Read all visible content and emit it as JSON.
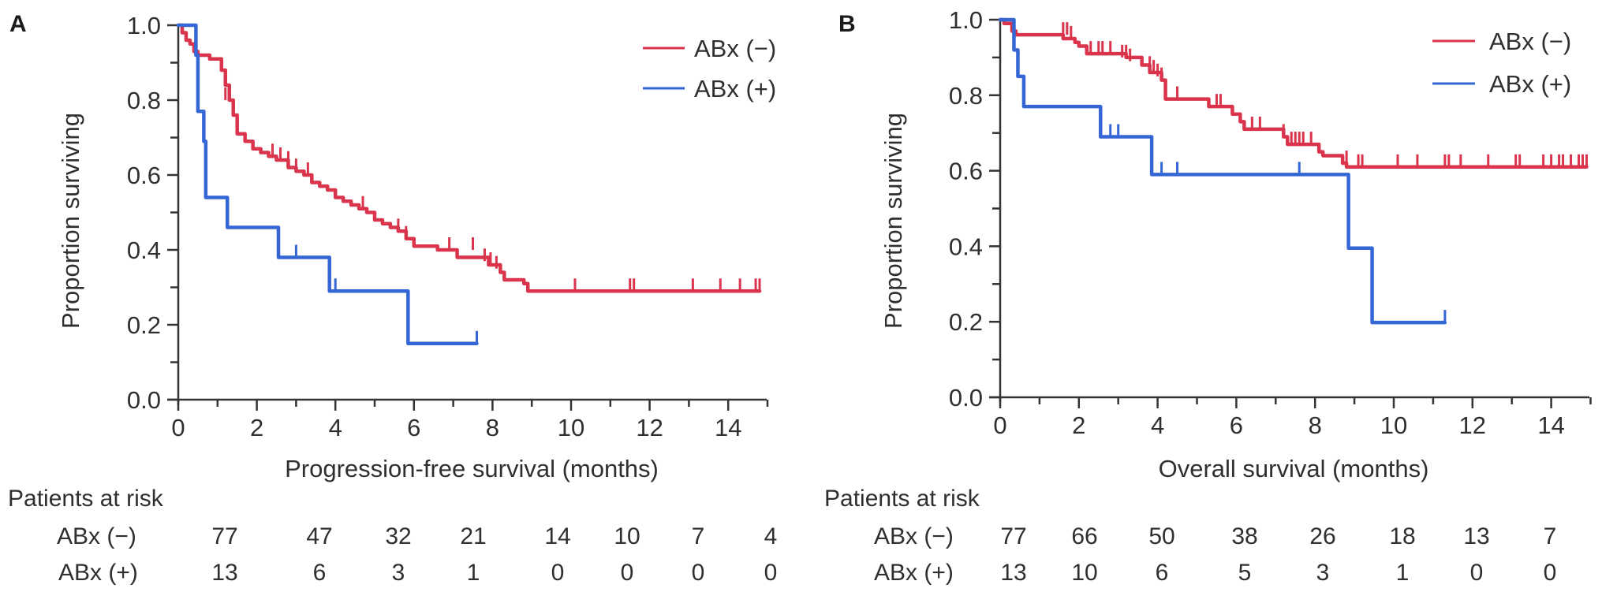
{
  "colors": {
    "abx_neg": "#d9344b",
    "abx_pos": "#3566d6",
    "axis": "#333333"
  },
  "chart_data": [
    {
      "panel": "A",
      "type": "line",
      "subtype": "kaplan-meier step",
      "title": "",
      "xlabel": "Progression-free survival (months)",
      "ylabel": "Proportion surviving",
      "xlim": [
        0,
        15
      ],
      "ylim": [
        0,
        1.0
      ],
      "xticks": [
        "0",
        "2",
        "4",
        "6",
        "8",
        "10",
        "12",
        "14"
      ],
      "xtick_values": [
        0,
        2,
        4,
        6,
        8,
        10,
        12,
        14
      ],
      "yticks": [
        "0.0",
        "0.2",
        "0.4",
        "0.6",
        "0.8",
        "1.0"
      ],
      "ytick_values": [
        0,
        0.2,
        0.4,
        0.6,
        0.8,
        1.0
      ],
      "grid": false,
      "legend_position": "top-right",
      "series": [
        {
          "name": "ABx (−)",
          "color_key": "abx_neg",
          "steps": [
            [
              0,
              1.0
            ],
            [
              0.1,
              0.98
            ],
            [
              0.2,
              0.96
            ],
            [
              0.3,
              0.95
            ],
            [
              0.4,
              0.93
            ],
            [
              0.5,
              0.92
            ],
            [
              0.7,
              0.92
            ],
            [
              0.8,
              0.91
            ],
            [
              1.0,
              0.91
            ],
            [
              1.1,
              0.88
            ],
            [
              1.2,
              0.84
            ],
            [
              1.3,
              0.8
            ],
            [
              1.4,
              0.76
            ],
            [
              1.5,
              0.71
            ],
            [
              1.7,
              0.69
            ],
            [
              1.9,
              0.67
            ],
            [
              2.1,
              0.66
            ],
            [
              2.3,
              0.65
            ],
            [
              2.5,
              0.64
            ],
            [
              2.8,
              0.62
            ],
            [
              3.0,
              0.61
            ],
            [
              3.2,
              0.6
            ],
            [
              3.4,
              0.58
            ],
            [
              3.6,
              0.57
            ],
            [
              3.8,
              0.56
            ],
            [
              4.0,
              0.54
            ],
            [
              4.2,
              0.53
            ],
            [
              4.4,
              0.52
            ],
            [
              4.6,
              0.51
            ],
            [
              4.8,
              0.5
            ],
            [
              5.0,
              0.48
            ],
            [
              5.2,
              0.47
            ],
            [
              5.4,
              0.46
            ],
            [
              5.6,
              0.45
            ],
            [
              5.8,
              0.43
            ],
            [
              6.0,
              0.41
            ],
            [
              6.4,
              0.41
            ],
            [
              6.6,
              0.4
            ],
            [
              7.0,
              0.4
            ],
            [
              7.1,
              0.38
            ],
            [
              7.8,
              0.38
            ],
            [
              7.9,
              0.36
            ],
            [
              8.0,
              0.36
            ],
            [
              8.2,
              0.34
            ],
            [
              8.3,
              0.32
            ],
            [
              8.8,
              0.31
            ],
            [
              8.9,
              0.29
            ],
            [
              14.8,
              0.29
            ]
          ],
          "censored": [
            [
              1.2,
              0.8
            ],
            [
              2.4,
              0.65
            ],
            [
              2.6,
              0.64
            ],
            [
              2.8,
              0.63
            ],
            [
              3.0,
              0.61
            ],
            [
              3.3,
              0.6
            ],
            [
              4.7,
              0.51
            ],
            [
              5.6,
              0.45
            ],
            [
              5.8,
              0.43
            ],
            [
              6.9,
              0.4
            ],
            [
              7.5,
              0.4
            ],
            [
              7.8,
              0.37
            ],
            [
              7.95,
              0.36
            ],
            [
              8.1,
              0.35
            ],
            [
              10.1,
              0.29
            ],
            [
              11.5,
              0.29
            ],
            [
              11.6,
              0.29
            ],
            [
              13.1,
              0.29
            ],
            [
              13.8,
              0.29
            ],
            [
              14.3,
              0.29
            ],
            [
              14.7,
              0.29
            ],
            [
              14.8,
              0.29
            ]
          ]
        },
        {
          "name": "ABx (+)",
          "color_key": "abx_pos",
          "steps": [
            [
              0,
              1.0
            ],
            [
              0.4,
              1.0
            ],
            [
              0.45,
              0.92
            ],
            [
              0.5,
              0.77
            ],
            [
              0.65,
              0.69
            ],
            [
              0.7,
              0.54
            ],
            [
              1.2,
              0.54
            ],
            [
              1.25,
              0.46
            ],
            [
              2.5,
              0.46
            ],
            [
              2.55,
              0.38
            ],
            [
              3.8,
              0.38
            ],
            [
              3.85,
              0.29
            ],
            [
              5.8,
              0.29
            ],
            [
              5.85,
              0.15
            ],
            [
              7.6,
              0.15
            ]
          ],
          "censored": [
            [
              3.0,
              0.38
            ],
            [
              4.0,
              0.29
            ],
            [
              7.6,
              0.15
            ]
          ]
        }
      ],
      "risk_table": {
        "title": "Patients at risk",
        "times": [
          0,
          2,
          4,
          6,
          8,
          10,
          12,
          14
        ],
        "rows": [
          {
            "label": "ABx (−)",
            "values": [
              "77",
              "47",
              "32",
              "21",
              "14",
              "10",
              "7",
              "4"
            ]
          },
          {
            "label": "ABx (+)",
            "values": [
              "13",
              "6",
              "3",
              "1",
              "0",
              "0",
              "0",
              "0"
            ]
          }
        ]
      }
    },
    {
      "panel": "B",
      "type": "line",
      "subtype": "kaplan-meier step",
      "title": "",
      "xlabel": "Overall survival (months)",
      "ylabel": "Proportion surviving",
      "xlim": [
        0,
        15
      ],
      "ylim": [
        0,
        1.0
      ],
      "xticks": [
        "0",
        "2",
        "4",
        "6",
        "8",
        "10",
        "12",
        "14"
      ],
      "xtick_values": [
        0,
        2,
        4,
        6,
        8,
        10,
        12,
        14
      ],
      "yticks": [
        "0.0",
        "0.2",
        "0.4",
        "0.6",
        "0.8",
        "1.0"
      ],
      "ytick_values": [
        0,
        0.2,
        0.4,
        0.6,
        0.8,
        1.0
      ],
      "grid": false,
      "legend_position": "top-right",
      "series": [
        {
          "name": "ABx (−)",
          "color_key": "abx_neg",
          "steps": [
            [
              0,
              1.0
            ],
            [
              0.1,
              0.99
            ],
            [
              0.3,
              0.97
            ],
            [
              0.4,
              0.96
            ],
            [
              1.5,
              0.96
            ],
            [
              1.6,
              0.95
            ],
            [
              1.9,
              0.94
            ],
            [
              2.0,
              0.93
            ],
            [
              2.2,
              0.91
            ],
            [
              3.0,
              0.91
            ],
            [
              3.2,
              0.9
            ],
            [
              3.6,
              0.88
            ],
            [
              3.8,
              0.86
            ],
            [
              4.1,
              0.84
            ],
            [
              4.2,
              0.79
            ],
            [
              5.2,
              0.79
            ],
            [
              5.3,
              0.77
            ],
            [
              5.8,
              0.77
            ],
            [
              5.9,
              0.75
            ],
            [
              6.1,
              0.73
            ],
            [
              6.2,
              0.71
            ],
            [
              7.0,
              0.71
            ],
            [
              7.2,
              0.69
            ],
            [
              7.3,
              0.67
            ],
            [
              8.0,
              0.67
            ],
            [
              8.1,
              0.65
            ],
            [
              8.2,
              0.64
            ],
            [
              8.7,
              0.62
            ],
            [
              8.8,
              0.61
            ],
            [
              14.9,
              0.61
            ]
          ],
          "censored": [
            [
              1.6,
              0.96
            ],
            [
              1.7,
              0.96
            ],
            [
              1.8,
              0.95
            ],
            [
              2.3,
              0.91
            ],
            [
              2.5,
              0.91
            ],
            [
              2.6,
              0.91
            ],
            [
              2.8,
              0.91
            ],
            [
              3.1,
              0.9
            ],
            [
              3.2,
              0.9
            ],
            [
              3.3,
              0.89
            ],
            [
              3.8,
              0.87
            ],
            [
              3.9,
              0.86
            ],
            [
              4.0,
              0.85
            ],
            [
              4.1,
              0.84
            ],
            [
              4.5,
              0.79
            ],
            [
              5.5,
              0.77
            ],
            [
              5.6,
              0.77
            ],
            [
              6.4,
              0.71
            ],
            [
              6.6,
              0.71
            ],
            [
              7.2,
              0.69
            ],
            [
              7.4,
              0.67
            ],
            [
              7.5,
              0.67
            ],
            [
              7.6,
              0.67
            ],
            [
              7.7,
              0.67
            ],
            [
              7.9,
              0.67
            ],
            [
              8.8,
              0.62
            ],
            [
              9.1,
              0.61
            ],
            [
              9.2,
              0.61
            ],
            [
              10.1,
              0.61
            ],
            [
              10.6,
              0.61
            ],
            [
              11.3,
              0.61
            ],
            [
              11.4,
              0.61
            ],
            [
              11.7,
              0.61
            ],
            [
              12.4,
              0.61
            ],
            [
              13.1,
              0.61
            ],
            [
              13.2,
              0.61
            ],
            [
              13.8,
              0.61
            ],
            [
              14.0,
              0.61
            ],
            [
              14.2,
              0.61
            ],
            [
              14.3,
              0.61
            ],
            [
              14.5,
              0.61
            ],
            [
              14.7,
              0.61
            ],
            [
              14.8,
              0.61
            ],
            [
              14.9,
              0.61
            ]
          ]
        },
        {
          "name": "ABx (+)",
          "color_key": "abx_pos",
          "steps": [
            [
              0,
              1.0
            ],
            [
              0.3,
              1.0
            ],
            [
              0.35,
              0.92
            ],
            [
              0.45,
              0.85
            ],
            [
              0.6,
              0.77
            ],
            [
              2.5,
              0.77
            ],
            [
              2.55,
              0.69
            ],
            [
              3.8,
              0.69
            ],
            [
              3.85,
              0.59
            ],
            [
              8.8,
              0.59
            ],
            [
              8.85,
              0.395
            ],
            [
              9.4,
              0.395
            ],
            [
              9.45,
              0.198
            ],
            [
              11.3,
              0.198
            ]
          ],
          "censored": [
            [
              2.8,
              0.69
            ],
            [
              3.0,
              0.69
            ],
            [
              4.1,
              0.59
            ],
            [
              4.5,
              0.59
            ],
            [
              7.6,
              0.59
            ],
            [
              11.3,
              0.198
            ]
          ]
        }
      ],
      "risk_table": {
        "title": "Patients at risk",
        "times": [
          0,
          2,
          4,
          6,
          8,
          10,
          12,
          14
        ],
        "rows": [
          {
            "label": "ABx (−)",
            "values": [
              "77",
              "66",
              "50",
              "38",
              "26",
              "18",
              "13",
              "7"
            ]
          },
          {
            "label": "ABx (+)",
            "values": [
              "13",
              "10",
              "6",
              "5",
              "3",
              "1",
              "0",
              "0"
            ]
          }
        ]
      }
    }
  ]
}
